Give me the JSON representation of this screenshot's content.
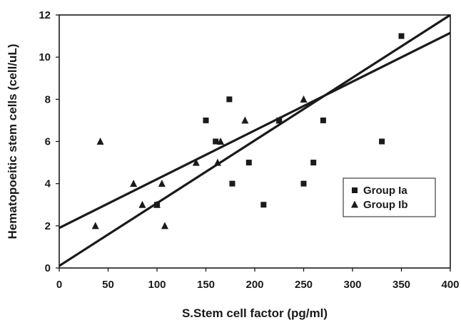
{
  "chart_data": {
    "type": "scatter",
    "title": "",
    "xlabel": "S.Stem cell factor (pg/ml)",
    "ylabel": "Hematopoeitic stem cells (cell/uL)",
    "xlim": [
      0,
      400
    ],
    "ylim": [
      0,
      12
    ],
    "x_ticks": [
      0,
      50,
      100,
      150,
      200,
      250,
      300,
      350,
      400
    ],
    "y_ticks": [
      0,
      2,
      4,
      6,
      8,
      10,
      12
    ],
    "grid": false,
    "legend_position": "bottom-right",
    "colors": {
      "markers": "#1a1a1a",
      "lines": "#1a1a1a",
      "background": "#ffffff"
    },
    "series": [
      {
        "name": "Group Ia",
        "marker": "square",
        "points": [
          [
            100,
            3
          ],
          [
            150,
            7
          ],
          [
            160,
            6
          ],
          [
            174,
            8
          ],
          [
            177,
            4
          ],
          [
            194,
            5
          ],
          [
            209,
            3
          ],
          [
            225,
            7
          ],
          [
            250,
            4
          ],
          [
            260,
            5
          ],
          [
            270,
            7
          ],
          [
            330,
            6
          ],
          [
            350,
            11
          ]
        ],
        "trendline": {
          "x": [
            0,
            400
          ],
          "y": [
            0.1,
            12
          ]
        }
      },
      {
        "name": "Group Ib",
        "marker": "triangle",
        "points": [
          [
            37,
            2
          ],
          [
            42,
            6
          ],
          [
            76,
            4
          ],
          [
            85,
            3
          ],
          [
            100,
            3
          ],
          [
            105,
            4
          ],
          [
            108,
            2
          ],
          [
            140,
            5
          ],
          [
            162,
            5
          ],
          [
            165,
            6
          ],
          [
            190,
            7
          ],
          [
            225,
            7
          ],
          [
            250,
            8
          ]
        ],
        "trendline": {
          "x": [
            0,
            400
          ],
          "y": [
            1.9,
            11.15
          ]
        }
      }
    ]
  }
}
